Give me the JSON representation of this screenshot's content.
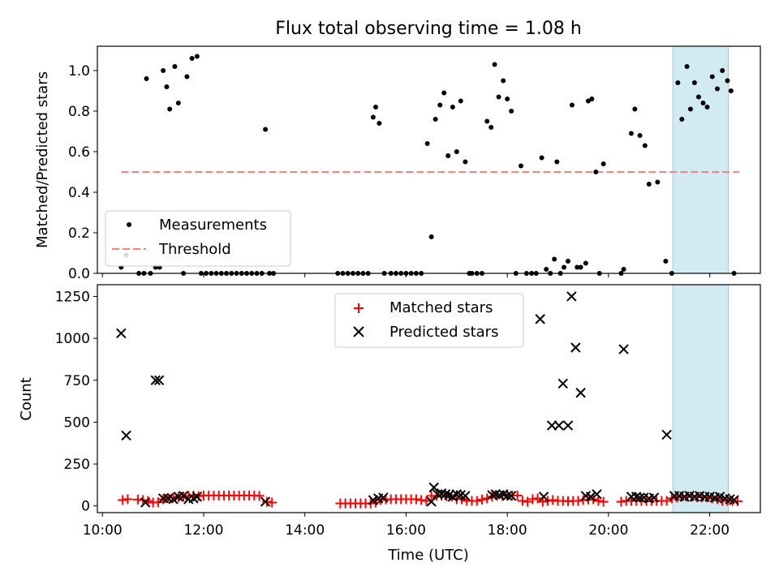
{
  "chart_data": [
    {
      "type": "scatter",
      "title": "Flux total observing time = 1.08 h",
      "xlabel": "",
      "ylabel": "Matched/Predicted stars",
      "xlim": [
        9.9,
        23.0
      ],
      "ylim": [
        0,
        1.12
      ],
      "yticks": [
        0.0,
        0.2,
        0.4,
        0.6,
        0.8,
        1.0
      ],
      "ytick_labels": [
        "0.0",
        "0.2",
        "0.4",
        "0.6",
        "0.8",
        "1.0"
      ],
      "shaded_span": [
        21.27,
        22.37
      ],
      "legend_position": "lower-left",
      "series": [
        {
          "name": "Measurements",
          "marker": "dot",
          "color": "#000000",
          "x": [
            10.37,
            10.47,
            10.72,
            10.82,
            10.87,
            10.95,
            11.05,
            11.13,
            11.2,
            11.27,
            11.33,
            11.43,
            11.5,
            11.6,
            11.67,
            11.77,
            11.87,
            11.95,
            12.05,
            12.15,
            12.25,
            12.35,
            12.45,
            12.55,
            12.65,
            12.75,
            12.85,
            12.95,
            13.05,
            13.15,
            13.22,
            13.3,
            13.38,
            14.65,
            14.75,
            14.85,
            14.95,
            15.05,
            15.15,
            15.25,
            15.35,
            15.4,
            15.47,
            15.57,
            15.7,
            15.8,
            15.9,
            16.0,
            16.1,
            16.2,
            16.3,
            16.42,
            16.5,
            16.58,
            16.67,
            16.75,
            16.83,
            16.92,
            17.0,
            17.08,
            17.17,
            17.25,
            17.3,
            17.4,
            17.5,
            17.6,
            17.68,
            17.75,
            17.83,
            17.92,
            18.0,
            18.08,
            18.17,
            18.27,
            18.38,
            18.48,
            18.57,
            18.68,
            18.77,
            18.85,
            18.93,
            18.98,
            19.05,
            19.12,
            19.2,
            19.28,
            19.38,
            19.45,
            19.55,
            19.6,
            19.67,
            19.75,
            19.82,
            19.9,
            20.25,
            20.3,
            20.45,
            20.52,
            20.62,
            20.72,
            20.8,
            20.97,
            21.13,
            21.25,
            21.37,
            21.45,
            21.55,
            21.62,
            21.7,
            21.78,
            21.87,
            21.95,
            22.05,
            22.15,
            22.25,
            22.35,
            22.42,
            22.48
          ],
          "y": [
            0.03,
            0.09,
            0.0,
            0.0,
            0.96,
            0.0,
            0.03,
            0.03,
            1.0,
            0.92,
            0.81,
            1.02,
            0.84,
            0.0,
            0.97,
            1.06,
            1.07,
            0.0,
            0.0,
            0.0,
            0.0,
            0.0,
            0.0,
            0.0,
            0.0,
            0.0,
            0.0,
            0.0,
            0.0,
            0.0,
            0.71,
            0.0,
            0.0,
            0.0,
            0.0,
            0.0,
            0.0,
            0.0,
            0.0,
            0.0,
            0.77,
            0.82,
            0.74,
            0.0,
            0.0,
            0.0,
            0.0,
            0.0,
            0.0,
            0.0,
            0.0,
            0.64,
            0.18,
            0.76,
            0.83,
            0.89,
            0.58,
            0.82,
            0.6,
            0.85,
            0.55,
            0.0,
            0.0,
            0.0,
            0.0,
            0.75,
            0.72,
            1.03,
            0.87,
            0.95,
            0.86,
            0.8,
            0.0,
            0.53,
            0.0,
            0.0,
            0.0,
            0.57,
            0.02,
            0.0,
            0.07,
            0.55,
            0.0,
            0.03,
            0.06,
            0.83,
            0.03,
            0.03,
            0.05,
            0.85,
            0.86,
            0.5,
            0.0,
            0.54,
            0.0,
            0.02,
            0.69,
            0.81,
            0.68,
            0.63,
            0.44,
            0.45,
            0.06,
            0.0,
            0.94,
            0.76,
            1.02,
            0.81,
            0.94,
            0.87,
            0.84,
            0.82,
            0.97,
            0.91,
            1.0,
            0.95,
            0.9,
            0.0
          ]
        },
        {
          "name": "Threshold",
          "style": "dashed",
          "color": "#ff8080",
          "x": [
            10.37,
            22.58
          ],
          "y": [
            0.5,
            0.5
          ]
        }
      ]
    },
    {
      "type": "scatter",
      "title": "",
      "xlabel": "Time (UTC)",
      "ylabel": "Count",
      "xlim": [
        9.9,
        23.0
      ],
      "ylim": [
        -40,
        1320
      ],
      "xticks": [
        10,
        12,
        14,
        16,
        18,
        20,
        22
      ],
      "xtick_labels": [
        "10:00",
        "12:00",
        "14:00",
        "16:00",
        "18:00",
        "20:00",
        "22:00"
      ],
      "yticks": [
        0,
        250,
        500,
        750,
        1000,
        1250
      ],
      "ytick_labels": [
        "0",
        "250",
        "500",
        "750",
        "1000",
        "1250"
      ],
      "shaded_span": [
        21.27,
        22.37
      ],
      "legend_position": "upper-center",
      "series": [
        {
          "name": "Matched stars",
          "marker": "plus",
          "color": "#ff0000",
          "x": [
            10.4,
            10.5,
            10.7,
            10.8,
            10.9,
            11.0,
            11.1,
            11.2,
            11.3,
            11.4,
            11.5,
            11.6,
            11.7,
            11.8,
            11.9,
            12.0,
            12.1,
            12.2,
            12.3,
            12.4,
            12.5,
            12.6,
            12.7,
            12.8,
            12.9,
            13.0,
            13.1,
            13.25,
            13.35,
            14.7,
            14.8,
            14.9,
            15.0,
            15.1,
            15.2,
            15.3,
            15.4,
            15.5,
            15.6,
            15.7,
            15.8,
            15.9,
            16.0,
            16.1,
            16.2,
            16.3,
            16.4,
            16.5,
            16.6,
            16.7,
            16.8,
            16.9,
            17.0,
            17.1,
            17.2,
            17.3,
            17.4,
            17.5,
            17.6,
            17.7,
            17.8,
            17.9,
            18.0,
            18.1,
            18.2,
            18.3,
            18.4,
            18.5,
            18.6,
            18.7,
            18.8,
            18.9,
            19.0,
            19.1,
            19.2,
            19.3,
            19.4,
            19.5,
            19.6,
            19.7,
            19.8,
            19.9,
            20.25,
            20.35,
            20.45,
            20.55,
            20.65,
            20.75,
            20.85,
            20.95,
            21.05,
            21.15,
            21.25,
            21.35,
            21.45,
            21.55,
            21.65,
            21.75,
            21.85,
            21.95,
            22.05,
            22.15,
            22.25,
            22.35,
            22.45,
            22.55
          ],
          "y": [
            35,
            40,
            38,
            35,
            30,
            20,
            22,
            40,
            48,
            50,
            52,
            55,
            60,
            62,
            58,
            62,
            62,
            62,
            62,
            62,
            62,
            62,
            62,
            62,
            62,
            62,
            60,
            25,
            20,
            15,
            15,
            15,
            15,
            15,
            15,
            15,
            20,
            35,
            38,
            40,
            40,
            40,
            40,
            40,
            40,
            35,
            30,
            60,
            60,
            62,
            58,
            55,
            40,
            40,
            30,
            30,
            30,
            38,
            45,
            55,
            62,
            62,
            62,
            62,
            62,
            30,
            25,
            40,
            45,
            25,
            30,
            35,
            30,
            30,
            28,
            30,
            30,
            35,
            38,
            40,
            30,
            25,
            25,
            30,
            30,
            30,
            30,
            30,
            30,
            30,
            30,
            30,
            45,
            50,
            55,
            55,
            55,
            52,
            52,
            50,
            45,
            40,
            30,
            30,
            30,
            28
          ]
        },
        {
          "name": "Predicted stars",
          "marker": "x",
          "color": "#000000",
          "x": [
            10.37,
            10.47,
            10.85,
            11.05,
            11.12,
            11.2,
            11.3,
            11.4,
            11.5,
            11.6,
            11.7,
            11.8,
            11.87,
            13.22,
            15.35,
            15.45,
            15.55,
            16.5,
            16.55,
            16.62,
            16.7,
            16.78,
            16.85,
            16.92,
            17.0,
            17.08,
            17.17,
            17.7,
            17.77,
            17.85,
            17.92,
            18.0,
            18.08,
            18.65,
            18.72,
            18.88,
            19.02,
            19.1,
            19.2,
            19.27,
            19.35,
            19.45,
            19.55,
            19.65,
            19.77,
            20.3,
            20.45,
            20.55,
            20.62,
            20.7,
            20.8,
            20.9,
            21.15,
            21.3,
            21.4,
            21.5,
            21.6,
            21.7,
            21.8,
            21.9,
            22.0,
            22.1,
            22.2,
            22.3,
            22.4,
            22.48
          ],
          "y": [
            1030,
            420,
            20,
            750,
            750,
            45,
            45,
            40,
            55,
            60,
            40,
            45,
            55,
            25,
            35,
            45,
            50,
            25,
            110,
            70,
            75,
            70,
            65,
            55,
            70,
            65,
            60,
            65,
            70,
            65,
            70,
            60,
            60,
            1115,
            55,
            480,
            480,
            730,
            480,
            1250,
            945,
            675,
            60,
            55,
            70,
            935,
            55,
            55,
            50,
            50,
            45,
            50,
            425,
            60,
            60,
            55,
            60,
            55,
            60,
            55,
            55,
            50,
            55,
            45,
            40,
            35
          ]
        }
      ]
    }
  ]
}
